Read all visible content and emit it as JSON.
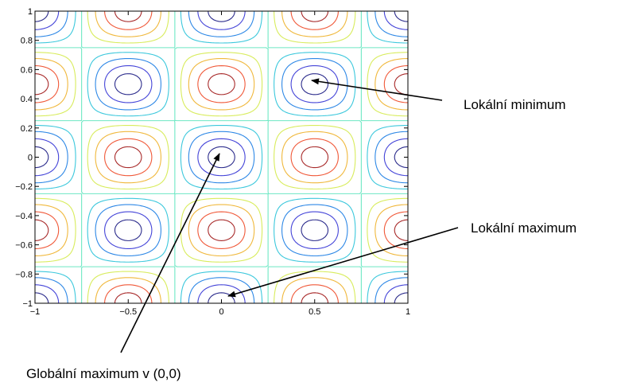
{
  "chart_data": {
    "type": "contour",
    "function_description": "periodic contour field with minima at (±0.5, ±0.5) and maxima at (0,0), (±1,0), (0,±1), (±1,±1)",
    "x_range": [
      -1,
      1
    ],
    "y_range": [
      -1,
      1
    ],
    "x_ticks": [
      {
        "value": -1,
        "label": "−1"
      },
      {
        "value": -0.5,
        "label": "−0.5"
      },
      {
        "value": 0,
        "label": "0"
      },
      {
        "value": 0.5,
        "label": "0.5"
      },
      {
        "value": 1,
        "label": "1"
      }
    ],
    "y_ticks": [
      {
        "value": 1,
        "label": "1"
      },
      {
        "value": 0.8,
        "label": "0.8"
      },
      {
        "value": 0.6,
        "label": "0.6"
      },
      {
        "value": 0.4,
        "label": "0.4"
      },
      {
        "value": 0.2,
        "label": "0.2"
      },
      {
        "value": 0,
        "label": "0"
      },
      {
        "value": -0.2,
        "label": "−0.2"
      },
      {
        "value": -0.4,
        "label": "−0.4"
      },
      {
        "value": -0.6,
        "label": "−0.6"
      },
      {
        "value": -0.8,
        "label": "−0.8"
      },
      {
        "value": -1,
        "label": "−1"
      }
    ],
    "contour_levels": [
      {
        "value": 0.9,
        "color": "#2c2c8c"
      },
      {
        "value": 0.7,
        "color": "#4444d8"
      },
      {
        "value": 0.45,
        "color": "#2e88e6"
      },
      {
        "value": 0.2,
        "color": "#3cc8dc"
      },
      {
        "value": 0.0,
        "color": "#6ee8c4"
      },
      {
        "value": -0.2,
        "color": "#d8ec5c"
      },
      {
        "value": -0.45,
        "color": "#f0b83c"
      },
      {
        "value": -0.7,
        "color": "#f05838"
      },
      {
        "value": -0.9,
        "color": "#a82a2a"
      }
    ],
    "grid": false,
    "annotations": [
      {
        "text": "Lokální minimum",
        "point": [
          0.5,
          0.5
        ]
      },
      {
        "text": "Lokální maximum",
        "point": [
          0,
          -0.95
        ]
      },
      {
        "text": "Globální maximum v (0,0)",
        "point": [
          0,
          0
        ]
      }
    ]
  }
}
